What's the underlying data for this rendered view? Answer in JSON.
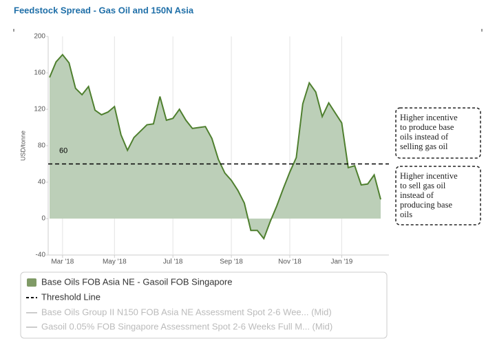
{
  "chart_data": {
    "type": "area",
    "title": "Feedstock Spread - Gas Oil and 150N Asia",
    "y_label": "USD/tonne",
    "ylim": [
      -40,
      200
    ],
    "yticks": [
      -40,
      0,
      40,
      80,
      120,
      160,
      200
    ],
    "xlim": [
      0,
      51
    ],
    "xticks": [
      {
        "value": 2,
        "label": "Mar '18"
      },
      {
        "value": 10,
        "label": "May '18"
      },
      {
        "value": 19,
        "label": "Jul '18"
      },
      {
        "value": 28,
        "label": "Sep '18"
      },
      {
        "value": 37,
        "label": "Nov '18"
      },
      {
        "value": 45,
        "label": "Jan '19"
      }
    ],
    "series": [
      {
        "name": "Base Oils FOB Asia NE - Gasoil FOB Singapore",
        "color": "#4e7f2e",
        "values": [
          155,
          172,
          180,
          171,
          143,
          136,
          145,
          119,
          114,
          117,
          123,
          92,
          75,
          89,
          96,
          103,
          104,
          134,
          108,
          110,
          120,
          108,
          99,
          100,
          101,
          88,
          65,
          50,
          42,
          31,
          17,
          -13,
          -13,
          -22,
          -3,
          14,
          33,
          51,
          67,
          126,
          149,
          139,
          112,
          127,
          116,
          105,
          56,
          58,
          37,
          38,
          48,
          21
        ]
      }
    ],
    "threshold": {
      "name": "Threshold Line",
      "value": 60
    },
    "other_legend": [
      "Base Oils Group II N150 FOB Asia NE Assessment Spot 2-6 Wee... (Mid)",
      "Gasoil 0.05% FOB Singapore Assessment Spot 2-6 Weeks Full M... (Mid)"
    ],
    "annotations": [
      [
        "Higher incentive",
        "to produce base",
        "oils instead of",
        "selling gas oil"
      ],
      [
        "Higher incentive",
        "to sell gas oil",
        "instead of",
        "producing base",
        "oils"
      ]
    ]
  }
}
